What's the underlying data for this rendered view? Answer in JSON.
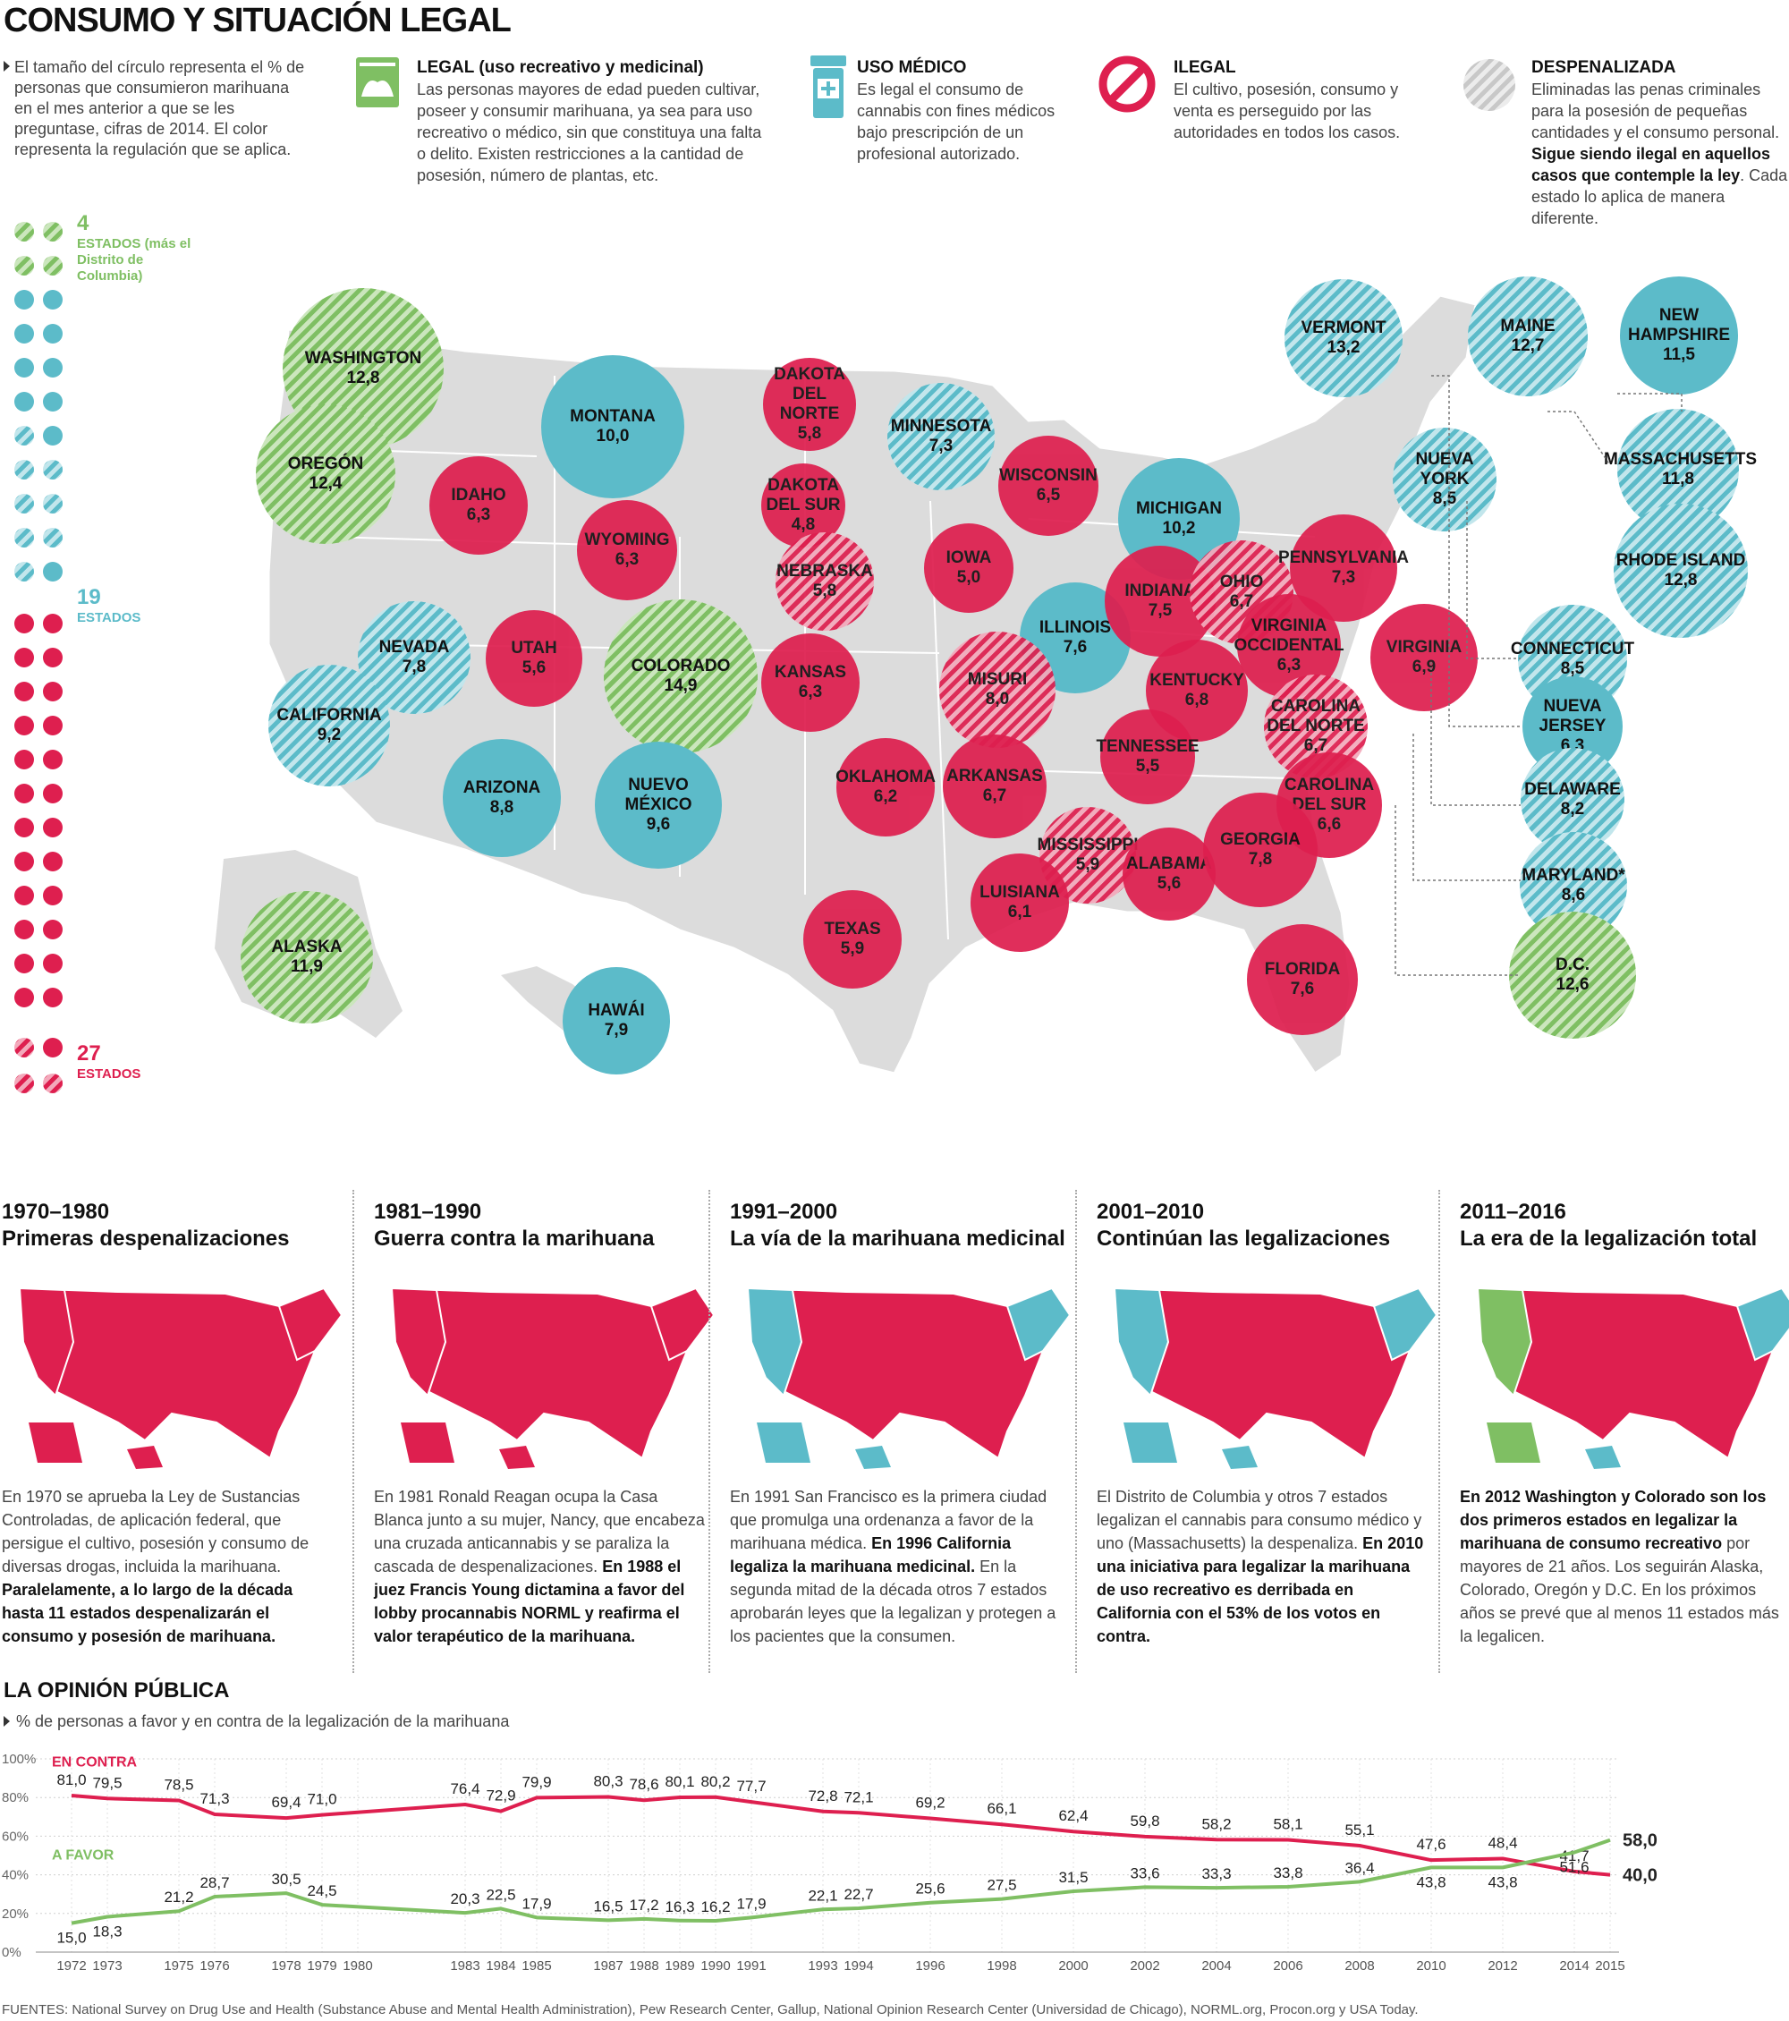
{
  "title": "CONSUMO Y SITUACIÓN LEGAL",
  "intro": "El tamaño del círculo representa el % de personas que consumieron marihuana en el mes anterior a que se les preguntase, cifras de 2014. El color representa la regulación que se aplica.",
  "legend": {
    "legal": {
      "title": "LEGAL (uso recreativo y medicinal)",
      "text": "Las personas mayores de edad pueden cultivar, poseer y consumir marihuana, ya sea para uso recreativo o médico, sin que constituya una falta o delito. Existen restricciones a la cantidad de posesión, número de plantas, etc."
    },
    "medico": {
      "title": "USO MÉDICO",
      "text": "Es legal el consumo de cannabis con fines médicos bajo prescripción de un profesional autorizado."
    },
    "ilegal": {
      "title": "ILEGAL",
      "text": "El cultivo, posesión, consumo y venta es perseguido por las autoridades en todos los casos."
    },
    "despenalizada": {
      "title": "DESPENALIZADA",
      "text1": "Eliminadas las penas criminales para la posesión de pequeñas cantidades y el consumo personal.",
      "bold": "Sigue siendo ilegal en aquellos casos que contemple la ley",
      "text2": ". Cada estado lo aplica de manera diferente."
    }
  },
  "counts": {
    "green": {
      "n": "4",
      "label": "ESTADOS (más el Distrito de Columbia)"
    },
    "blue": {
      "n": "19",
      "label": "ESTADOS"
    },
    "red": {
      "n": "27",
      "label": "ESTADOS"
    }
  },
  "colors": {
    "legal": "#7fbf63",
    "medico": "#5cbbc9",
    "ilegal": "#de1f4f",
    "map_grey": "#dcdcdc"
  },
  "states": [
    {
      "name": "WASHINGTON",
      "value": "12,8",
      "status": "legal"
    },
    {
      "name": "OREGÓN",
      "value": "12,4",
      "status": "legal"
    },
    {
      "name": "MONTANA",
      "value": "10,0",
      "status": "medico"
    },
    {
      "name": "IDAHO",
      "value": "6,3",
      "status": "ilegal"
    },
    {
      "name": "WYOMING",
      "value": "6,3",
      "status": "ilegal"
    },
    {
      "name": "DAKOTA DEL NORTE",
      "value": "5,8",
      "status": "ilegal"
    },
    {
      "name": "DAKOTA DEL SUR",
      "value": "4,8",
      "status": "ilegal"
    },
    {
      "name": "MINNESOTA",
      "value": "7,3",
      "status": "medico-desp"
    },
    {
      "name": "WISCONSIN",
      "value": "6,5",
      "status": "ilegal"
    },
    {
      "name": "MICHIGAN",
      "value": "10,2",
      "status": "medico"
    },
    {
      "name": "NEBRASKA",
      "value": "5,8",
      "status": "ilegal-desp"
    },
    {
      "name": "IOWA",
      "value": "5,0",
      "status": "ilegal"
    },
    {
      "name": "ILLINOIS",
      "value": "7,6",
      "status": "medico"
    },
    {
      "name": "INDIANA",
      "value": "7,5",
      "status": "ilegal"
    },
    {
      "name": "OHIO",
      "value": "6,7",
      "status": "ilegal-desp"
    },
    {
      "name": "PENNSYLVANIA",
      "value": "7,3",
      "status": "ilegal"
    },
    {
      "name": "NEVADA",
      "value": "7,8",
      "status": "medico-desp"
    },
    {
      "name": "UTAH",
      "value": "5,6",
      "status": "ilegal"
    },
    {
      "name": "COLORADO",
      "value": "14,9",
      "status": "legal"
    },
    {
      "name": "KANSAS",
      "value": "6,3",
      "status": "ilegal"
    },
    {
      "name": "MISURI",
      "value": "8,0",
      "status": "ilegal-desp"
    },
    {
      "name": "KENTUCKY",
      "value": "6,8",
      "status": "ilegal"
    },
    {
      "name": "VIRGINIA OCCIDENTAL",
      "value": "6,3",
      "status": "ilegal"
    },
    {
      "name": "VIRGINIA",
      "value": "6,9",
      "status": "ilegal"
    },
    {
      "name": "CALIFORNIA",
      "value": "9,2",
      "status": "medico-desp"
    },
    {
      "name": "ARIZONA",
      "value": "8,8",
      "status": "medico"
    },
    {
      "name": "NUEVO MÉXICO",
      "value": "9,6",
      "status": "medico"
    },
    {
      "name": "OKLAHOMA",
      "value": "6,2",
      "status": "ilegal"
    },
    {
      "name": "ARKANSAS",
      "value": "6,7",
      "status": "ilegal"
    },
    {
      "name": "TENNESSEE",
      "value": "5,5",
      "status": "ilegal"
    },
    {
      "name": "CAROLINA DEL NORTE",
      "value": "6,7",
      "status": "ilegal-desp"
    },
    {
      "name": "CAROLINA DEL SUR",
      "value": "6,6",
      "status": "ilegal"
    },
    {
      "name": "MISSISSIPPI",
      "value": "5,9",
      "status": "ilegal-desp"
    },
    {
      "name": "ALABAMA",
      "value": "5,6",
      "status": "ilegal"
    },
    {
      "name": "GEORGIA",
      "value": "7,8",
      "status": "ilegal"
    },
    {
      "name": "LUISIANA",
      "value": "6,1",
      "status": "ilegal"
    },
    {
      "name": "TEXAS",
      "value": "5,9",
      "status": "ilegal"
    },
    {
      "name": "FLORIDA",
      "value": "7,6",
      "status": "ilegal"
    },
    {
      "name": "ALASKA",
      "value": "11,9",
      "status": "legal"
    },
    {
      "name": "HAWÁI",
      "value": "7,9",
      "status": "medico"
    },
    {
      "name": "VERMONT",
      "value": "13,2",
      "status": "medico-desp"
    },
    {
      "name": "MAINE",
      "value": "12,7",
      "status": "medico-desp"
    },
    {
      "name": "NEW HAMPSHIRE",
      "value": "11,5",
      "status": "medico"
    },
    {
      "name": "NUEVA YORK",
      "value": "8,5",
      "status": "medico-desp"
    },
    {
      "name": "MASSACHUSETTS",
      "value": "11,8",
      "status": "medico-desp"
    },
    {
      "name": "RHODE ISLAND",
      "value": "12,8",
      "status": "medico-desp"
    },
    {
      "name": "CONNECTICUT",
      "value": "8,5",
      "status": "medico-desp"
    },
    {
      "name": "NUEVA JERSEY",
      "value": "6,3",
      "status": "medico"
    },
    {
      "name": "DELAWARE",
      "value": "8,2",
      "status": "medico-desp"
    },
    {
      "name": "MARYLAND*",
      "value": "8,6",
      "status": "medico-desp"
    },
    {
      "name": "D.C.",
      "value": "12,6",
      "status": "legal"
    }
  ],
  "decades": [
    {
      "period": "1970–1980",
      "subtitle": "Primeras despenalizaciones",
      "text": "En 1970 se aprueba la Ley de Sustancias Controladas, de aplicación federal, que persigue el cultivo, posesión y consumo de diversas drogas, incluida la marihuana.",
      "bold": "Paralelamente, a lo largo de la década hasta 11 estados despenalizarán el consumo y posesión de marihuana."
    },
    {
      "period": "1981–1990",
      "subtitle": "Guerra contra la marihuana",
      "text": "En 1981 Ronald Reagan ocupa la Casa Blanca junto a su mujer, Nancy, que encabeza una cruzada anticannabis y se paraliza la cascada de despenalizaciones.",
      "bold": "En 1988 el juez Francis Young dictamina a favor del lobby procannabis NORML y reafirma el valor terapéutico de la marihuana."
    },
    {
      "period": "1991–2000",
      "subtitle": "La vía de la marihuana medicinal",
      "text": "En 1991 San Francisco es la primera ciudad que promulga una ordenanza a favor de la marihuana médica.",
      "bold": "En 1996 California legaliza la marihuana medicinal.",
      "text2": "En la segunda mitad de la década otros 7 estados aprobarán leyes que la legalizan y protegen a los pacientes que la consumen."
    },
    {
      "period": "2001–2010",
      "subtitle": "Continúan las legalizaciones",
      "text": "El Distrito de Columbia y otros 7 estados legalizan el cannabis para consumo médico y uno (Massachusetts) la despenaliza.",
      "bold": "En 2010 una iniciativa para legalizar la marihuana de uso recreativo es derribada en California con el 53% de los votos en contra."
    },
    {
      "period": "2011–2016",
      "subtitle": "La era de la legalización total",
      "bold": "En 2012 Washington y Colorado son los dos primeros estados en legalizar la marihuana de consumo recreativo",
      "text": "por mayores de 21 años. Los seguirán Alaska, Colorado, Oregón y D.C. En los próximos años se prevé que al menos 11 estados más la legalicen."
    }
  ],
  "opinion": {
    "title": "LA OPINIÓN PÚBLICA",
    "subtitle": "% de personas a favor y en contra de la legalización de la marihuana"
  },
  "chart_data": {
    "type": "line",
    "title": "LA OPINIÓN PÚBLICA",
    "subtitle": "% de personas a favor y en contra de la legalización de la marihuana",
    "ylim": [
      0,
      100
    ],
    "y_ticks": [
      "100%",
      "80%",
      "60%",
      "40%",
      "20%",
      "0%"
    ],
    "x_ticks": [
      "1972",
      "1973",
      "1975",
      "1976",
      "1978",
      "1979",
      "1980",
      "1983",
      "1984",
      "1985",
      "1987",
      "1988",
      "1989",
      "1990",
      "1991",
      "1993",
      "1994",
      "1996",
      "1998",
      "2000",
      "2002",
      "2004",
      "2006",
      "2008",
      "2010",
      "2012",
      "2014",
      "2015"
    ],
    "series": [
      {
        "name": "EN CONTRA",
        "color": "#de1f4f",
        "x": [
          1972,
          1973,
          1975,
          1976,
          1978,
          1979,
          1983,
          1984,
          1985,
          1987,
          1988,
          1989,
          1990,
          1991,
          1993,
          1994,
          1996,
          1998,
          2000,
          2002,
          2004,
          2006,
          2008,
          2010,
          2012,
          2014,
          2015
        ],
        "values": [
          81.0,
          79.5,
          78.5,
          71.3,
          69.4,
          71.0,
          76.4,
          72.9,
          79.9,
          80.3,
          78.6,
          80.1,
          80.2,
          77.7,
          72.8,
          72.1,
          69.2,
          66.1,
          62.4,
          59.8,
          58.2,
          58.1,
          55.1,
          47.6,
          48.4,
          41.7,
          40.0
        ],
        "labels": [
          "81,0",
          "79,5",
          "78,5",
          "71,3",
          "69,4",
          "71,0",
          "76,4",
          "72,9",
          "79,9",
          "80,3",
          "78,6",
          "80,1",
          "80,2",
          "77,7",
          "72,8",
          "72,1",
          "69,2",
          "66,1",
          "62,4",
          "59,8",
          "58,2",
          "58,1",
          "55,1",
          "47,6",
          "48,4",
          "41,7",
          "40,0"
        ]
      },
      {
        "name": "A FAVOR",
        "color": "#7fbf63",
        "x": [
          1972,
          1973,
          1975,
          1976,
          1978,
          1979,
          1983,
          1984,
          1985,
          1987,
          1988,
          1989,
          1990,
          1991,
          1993,
          1994,
          1996,
          1998,
          2000,
          2002,
          2004,
          2006,
          2008,
          2010,
          2012,
          2014,
          2015
        ],
        "values": [
          15.0,
          18.3,
          21.2,
          28.7,
          30.5,
          24.5,
          20.3,
          22.5,
          17.9,
          16.5,
          17.2,
          16.3,
          16.2,
          17.9,
          22.1,
          22.7,
          25.6,
          27.5,
          31.5,
          33.6,
          33.3,
          33.8,
          36.4,
          43.8,
          43.8,
          51.6,
          58.0
        ],
        "labels": [
          "15,0",
          "18,3",
          "21,2",
          "28,7",
          "30,5",
          "24,5",
          "20,3",
          "22,5",
          "17,9",
          "16,5",
          "17,2",
          "16,3",
          "16,2",
          "17,9",
          "22,1",
          "22,7",
          "25,6",
          "27,5",
          "31,5",
          "33,6",
          "33,3",
          "33,8",
          "36,4",
          "43,8",
          "43,8",
          "51,6",
          "58,0"
        ]
      }
    ]
  },
  "footer": "FUENTES: National Survey on Drug Use and Health (Substance Abuse and Mental Health Administration), Pew Research Center, Gallup, National Opinion Research Center (Universidad de Chicago), NORML.org, Procon.org y USA Today."
}
